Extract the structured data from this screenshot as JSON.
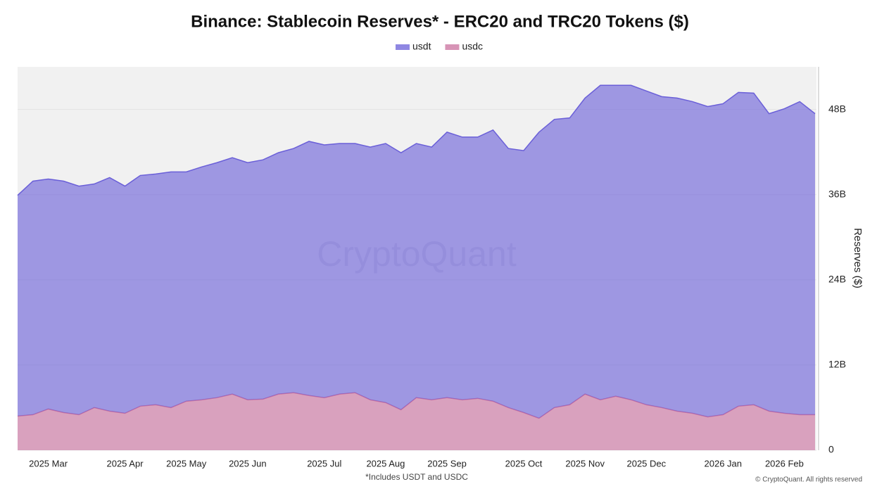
{
  "chart_data": {
    "type": "area",
    "stacked": true,
    "title": "Binance: Stablecoin Reserves* - ERC20 and TRC20 Tokens ($)",
    "ylabel": "Reserves ($)",
    "watermark": "CryptoQuant",
    "note": "*Includes USDT and USDC",
    "credit": "© CryptoQuant. All rights reserved",
    "categories": [
      null,
      null,
      "2025 Mar",
      null,
      null,
      null,
      null,
      "2025 Apr",
      null,
      null,
      null,
      "2025 May",
      null,
      null,
      null,
      "2025 Jun",
      null,
      null,
      null,
      null,
      "2025 Jul",
      null,
      null,
      null,
      "2025 Aug",
      null,
      null,
      null,
      "2025 Sep",
      null,
      null,
      null,
      null,
      "2025 Oct",
      null,
      null,
      null,
      "2025 Nov",
      null,
      null,
      null,
      "2025 Dec",
      null,
      null,
      null,
      null,
      "2026 Jan",
      null,
      null,
      null,
      "2026 Feb",
      null,
      null
    ],
    "series": [
      {
        "name": "usdt",
        "color": "#6a5fd8",
        "values": [
          31.1,
          32.9,
          32.4,
          32.6,
          32.2,
          31.5,
          32.9,
          32.0,
          32.5,
          32.5,
          33.2,
          32.3,
          32.8,
          33.1,
          33.3,
          33.4,
          33.7,
          34.0,
          34.4,
          35.8,
          35.6,
          35.3,
          35.1,
          35.6,
          36.5,
          36.2,
          35.8,
          35.6,
          37.4,
          37.0,
          36.8,
          38.2,
          36.5,
          36.9,
          40.3,
          40.6,
          40.4,
          41.7,
          44.3,
          43.8,
          44.3,
          44.2,
          43.8,
          44.1,
          43.9,
          43.7,
          43.8,
          44.2,
          43.9,
          41.9,
          42.9,
          44.1,
          42.4
        ]
      },
      {
        "name": "usdc",
        "color": "#c9709e",
        "values": [
          4.8,
          5.0,
          5.8,
          5.3,
          5.0,
          6.0,
          5.5,
          5.2,
          6.2,
          6.4,
          6.0,
          6.9,
          7.1,
          7.4,
          7.9,
          7.1,
          7.2,
          7.9,
          8.1,
          7.7,
          7.4,
          7.9,
          8.1,
          7.1,
          6.7,
          5.7,
          7.4,
          7.1,
          7.4,
          7.1,
          7.3,
          6.9,
          6.0,
          5.3,
          4.5,
          6.0,
          6.4,
          7.9,
          7.1,
          7.6,
          7.1,
          6.4,
          6.0,
          5.5,
          5.2,
          4.7,
          5.0,
          6.2,
          6.4,
          5.5,
          5.2,
          5.0,
          5.0
        ]
      }
    ],
    "ylim": [
      0,
      54
    ],
    "yticks": [
      {
        "value": 0,
        "label": "0"
      },
      {
        "value": 12,
        "label": "12B"
      },
      {
        "value": 24,
        "label": "24B"
      },
      {
        "value": 36,
        "label": "36B"
      },
      {
        "value": 48,
        "label": "48B"
      }
    ],
    "grid": true,
    "legend": "top"
  }
}
